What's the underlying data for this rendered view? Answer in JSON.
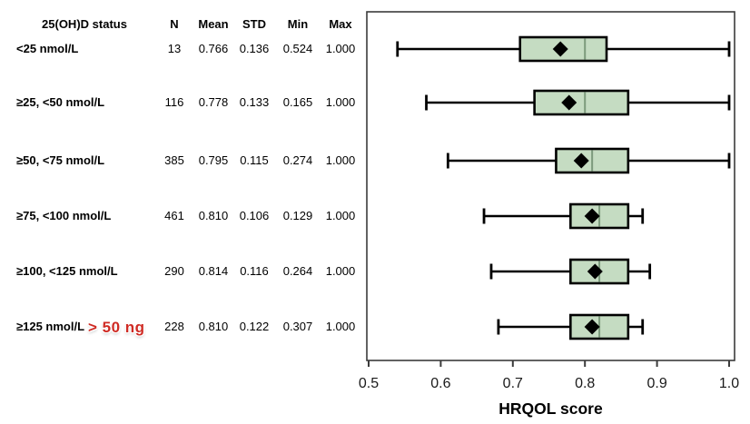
{
  "table": {
    "columns": [
      "25(OH)D status",
      "N",
      "Mean",
      "STD",
      "Min",
      "Max"
    ],
    "rows": [
      {
        "label": "<25 nmol/L",
        "n": "13",
        "mean": "0.766",
        "std": "0.136",
        "min": "0.524",
        "max": "1.000"
      },
      {
        "label": "≥25, <50 nmol/L",
        "n": "116",
        "mean": "0.778",
        "std": "0.133",
        "min": "0.165",
        "max": "1.000"
      },
      {
        "label": "≥50, <75 nmol/L",
        "n": "385",
        "mean": "0.795",
        "std": "0.115",
        "min": "0.274",
        "max": "1.000"
      },
      {
        "label": "≥75, <100 nmol/L",
        "n": "461",
        "mean": "0.810",
        "std": "0.106",
        "min": "0.129",
        "max": "1.000"
      },
      {
        "label": "≥100, <125 nmol/L",
        "n": "290",
        "mean": "0.814",
        "std": "0.116",
        "min": "0.264",
        "max": "1.000"
      },
      {
        "label": "≥125 nmol/L",
        "n": "228",
        "mean": "0.810",
        "std": "0.122",
        "min": "0.307",
        "max": "1.000"
      }
    ]
  },
  "annotation": {
    "text": "> 50 ng",
    "color": "#cf2b24"
  },
  "chart_data": {
    "type": "boxplot",
    "orientation": "horizontal",
    "title": "",
    "xlabel": "HRQOL score",
    "ylabel": "",
    "xlim": [
      0.5,
      1.0
    ],
    "xticks": [
      "0.5",
      "0.6",
      "0.7",
      "0.8",
      "0.9",
      "1.0"
    ],
    "grid": false,
    "legend": "none",
    "categories": [
      "<25 nmol/L",
      "≥25, <50 nmol/L",
      "≥50, <75 nmol/L",
      "≥75, <100 nmol/L",
      "≥100, <125 nmol/L",
      "≥125 nmol/L"
    ],
    "series": [
      {
        "name": "<25 nmol/L",
        "whisker_low": 0.54,
        "q1": 0.71,
        "median": 0.8,
        "q3": 0.83,
        "whisker_high": 1.0,
        "mean": 0.766
      },
      {
        "name": "≥25, <50 nmol/L",
        "whisker_low": 0.58,
        "q1": 0.73,
        "median": 0.8,
        "q3": 0.86,
        "whisker_high": 1.0,
        "mean": 0.778
      },
      {
        "name": "≥50, <75 nmol/L",
        "whisker_low": 0.61,
        "q1": 0.76,
        "median": 0.81,
        "q3": 0.86,
        "whisker_high": 1.0,
        "mean": 0.795
      },
      {
        "name": "≥75, <100 nmol/L",
        "whisker_low": 0.66,
        "q1": 0.78,
        "median": 0.82,
        "q3": 0.86,
        "whisker_high": 0.88,
        "mean": 0.81
      },
      {
        "name": "≥100, <125 nmol/L",
        "whisker_low": 0.67,
        "q1": 0.78,
        "median": 0.82,
        "q3": 0.86,
        "whisker_high": 0.89,
        "mean": 0.814
      },
      {
        "name": "≥125 nmol/L",
        "whisker_low": 0.68,
        "q1": 0.78,
        "median": 0.82,
        "q3": 0.86,
        "whisker_high": 0.88,
        "mean": 0.81
      }
    ],
    "colors": {
      "box_fill": "#c5dcc2",
      "box_border": "#000000",
      "median_line": "#7c9a7c",
      "mean_marker": "#000000",
      "whisker": "#000000",
      "frame": "#3b3b3b",
      "tick_text": "#1a1a1a"
    }
  }
}
